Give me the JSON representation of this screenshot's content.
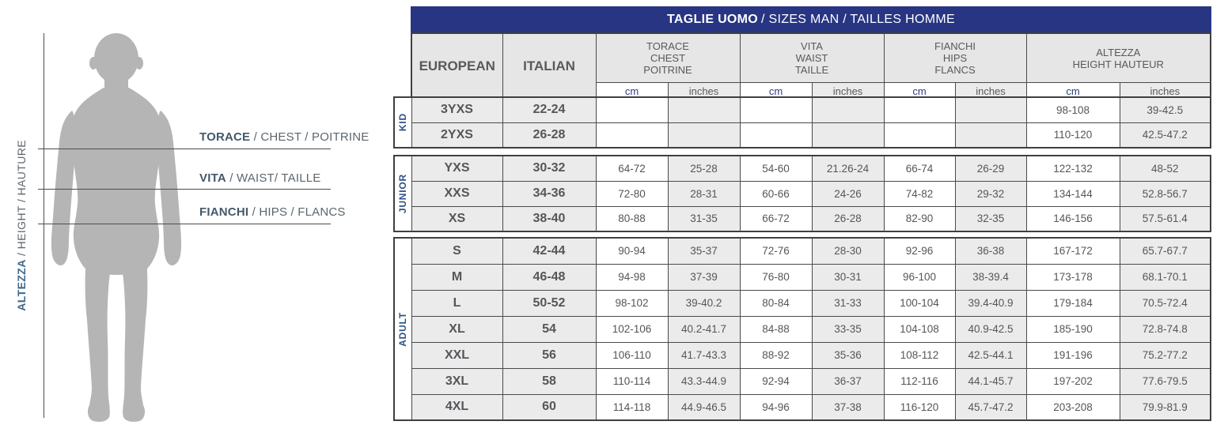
{
  "figure": {
    "vertical_label": {
      "bold": "ALTEZZA",
      "rest": " / HEIGHT / HAUTURE"
    },
    "measurements": [
      {
        "bold": "TORACE",
        "rest": " / CHEST / POITRINE"
      },
      {
        "bold": "VITA",
        "rest": " / WAIST/ TAILLE"
      },
      {
        "bold": "FIANCHI",
        "rest": " / HIPS / FLANCS"
      }
    ]
  },
  "table": {
    "title": {
      "bold": "TAGLIE UOMO",
      "rest": "/ SIZES MAN / TAILLES HOMME"
    },
    "columns": {
      "european": "EUROPEAN",
      "italian": "ITALIAN"
    },
    "measure_headers": [
      {
        "l1": "TORACE",
        "l2": "CHEST",
        "l3": "POITRINE"
      },
      {
        "l1": "VITA",
        "l2": "WAIST",
        "l3": "TAILLE"
      },
      {
        "l1": "FIANCHI",
        "l2": "HIPS",
        "l3": "FLANCS"
      },
      {
        "l1": "ALTEZZA",
        "l2": "HEIGHT HAUTEUR",
        "l3": ""
      }
    ],
    "units": {
      "cm": "cm",
      "inches": "inches"
    },
    "blocks": [
      {
        "label": "KID",
        "rows": [
          {
            "european": "3YXS",
            "italian": "22-24",
            "cells": [
              "",
              "",
              "",
              "",
              "",
              "",
              "98-108",
              "39-42.5"
            ]
          },
          {
            "european": "2YXS",
            "italian": "26-28",
            "cells": [
              "",
              "",
              "",
              "",
              "",
              "",
              "110-120",
              "42.5-47.2"
            ]
          }
        ]
      },
      {
        "label": "JUNIOR",
        "rows": [
          {
            "european": "YXS",
            "italian": "30-32",
            "cells": [
              "64-72",
              "25-28",
              "54-60",
              "21.26-24",
              "66-74",
              "26-29",
              "122-132",
              "48-52"
            ]
          },
          {
            "european": "XXS",
            "italian": "34-36",
            "cells": [
              "72-80",
              "28-31",
              "60-66",
              "24-26",
              "74-82",
              "29-32",
              "134-144",
              "52.8-56.7"
            ]
          },
          {
            "european": "XS",
            "italian": "38-40",
            "cells": [
              "80-88",
              "31-35",
              "66-72",
              "26-28",
              "82-90",
              "32-35",
              "146-156",
              "57.5-61.4"
            ]
          }
        ]
      },
      {
        "label": "ADULT",
        "rows": [
          {
            "european": "S",
            "italian": "42-44",
            "cells": [
              "90-94",
              "35-37",
              "72-76",
              "28-30",
              "92-96",
              "36-38",
              "167-172",
              "65.7-67.7"
            ]
          },
          {
            "european": "M",
            "italian": "46-48",
            "cells": [
              "94-98",
              "37-39",
              "76-80",
              "30-31",
              "96-100",
              "38-39.4",
              "173-178",
              "68.1-70.1"
            ]
          },
          {
            "european": "L",
            "italian": "50-52",
            "cells": [
              "98-102",
              "39-40.2",
              "80-84",
              "31-33",
              "100-104",
              "39.4-40.9",
              "179-184",
              "70.5-72.4"
            ]
          },
          {
            "european": "XL",
            "italian": "54",
            "cells": [
              "102-106",
              "40.2-41.7",
              "84-88",
              "33-35",
              "104-108",
              "40.9-42.5",
              "185-190",
              "72.8-74.8"
            ]
          },
          {
            "european": "XXL",
            "italian": "56",
            "cells": [
              "106-110",
              "41.7-43.3",
              "88-92",
              "35-36",
              "108-112",
              "42.5-44.1",
              "191-196",
              "75.2-77.2"
            ]
          },
          {
            "european": "3XL",
            "italian": "58",
            "cells": [
              "110-114",
              "43.3-44.9",
              "92-94",
              "36-37",
              "112-116",
              "44.1-45.7",
              "197-202",
              "77.6-79.5"
            ]
          },
          {
            "european": "4XL",
            "italian": "60",
            "cells": [
              "114-118",
              "44.9-46.5",
              "94-96",
              "37-38",
              "116-120",
              "45.7-47.2",
              "203-208",
              "79.9-81.9"
            ]
          }
        ]
      }
    ]
  },
  "colors": {
    "title_bar": "#283583",
    "cell_gray": "#ebebeb",
    "header_gray": "#e6e6e6",
    "border": "#4a4a4a",
    "group_label_blue": "#2b5185",
    "cm_blue": "#2b3b85",
    "text_gray": "#55565a",
    "silhouette_gray": "#b5b5b5"
  }
}
